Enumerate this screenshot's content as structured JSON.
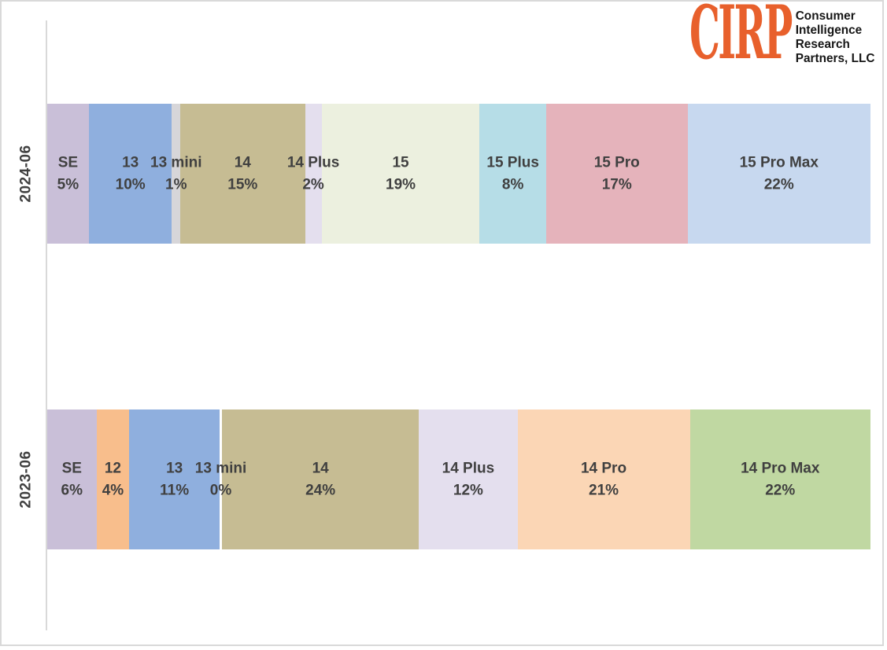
{
  "frame": {
    "border_color": "#D9D9D9",
    "background": "#FFFFFF",
    "axis_line_color": "#D9D9D9"
  },
  "logo": {
    "acronym": "CIRP",
    "acronym_color": "#E8602C",
    "name_lines": [
      "Consumer",
      "Intelligence",
      "Research",
      "Partners, LLC"
    ],
    "text_color": "#161616"
  },
  "chart_data": {
    "type": "bar",
    "subtype": "100%-stacked-horizontal",
    "title": "",
    "xlabel": "",
    "ylabel": "",
    "legend": "none (labels inside segments)",
    "grid": false,
    "label_color": "#404040",
    "categories": [
      "2024-06",
      "2023-06"
    ],
    "rows": [
      {
        "category": "2024-06",
        "segments": [
          {
            "model": "SE",
            "pct": 5,
            "pct_label": "5%",
            "color": "#C9BFD8"
          },
          {
            "model": "13",
            "pct": 10,
            "pct_label": "10%",
            "color": "#8FAFDE"
          },
          {
            "model": "13 mini",
            "pct": 1,
            "pct_label": "1%",
            "color": "#D7D6D9"
          },
          {
            "model": "14",
            "pct": 15,
            "pct_label": "15%",
            "color": "#C6BC93"
          },
          {
            "model": "14 Plus",
            "pct": 2,
            "pct_label": "2%",
            "color": "#E4DFEE"
          },
          {
            "model": "15",
            "pct": 19,
            "pct_label": "19%",
            "color": "#ECF0DF"
          },
          {
            "model": "15 Plus",
            "pct": 8,
            "pct_label": "8%",
            "color": "#B6DDE7"
          },
          {
            "model": "15 Pro",
            "pct": 17,
            "pct_label": "17%",
            "color": "#E5B3BB"
          },
          {
            "model": "15 Pro Max",
            "pct": 22,
            "pct_label": "22%",
            "color": "#C7D8EF"
          }
        ]
      },
      {
        "category": "2023-06",
        "segments": [
          {
            "model": "SE",
            "pct": 6,
            "pct_label": "6%",
            "color": "#C9BFD8"
          },
          {
            "model": "12",
            "pct": 4,
            "pct_label": "4%",
            "color": "#F8BE8C"
          },
          {
            "model": "13",
            "pct": 11,
            "pct_label": "11%",
            "color": "#8FAFDE"
          },
          {
            "model": "13 mini",
            "pct": 0,
            "pct_label": "0%",
            "color": "#D7D6D9"
          },
          {
            "model": "14",
            "pct": 24,
            "pct_label": "24%",
            "color": "#C6BC93"
          },
          {
            "model": "14 Plus",
            "pct": 12,
            "pct_label": "12%",
            "color": "#E4DFEE"
          },
          {
            "model": "14 Pro",
            "pct": 21,
            "pct_label": "21%",
            "color": "#FBD6B5"
          },
          {
            "model": "14 Pro Max",
            "pct": 22,
            "pct_label": "22%",
            "color": "#C0D8A2"
          }
        ]
      }
    ]
  }
}
